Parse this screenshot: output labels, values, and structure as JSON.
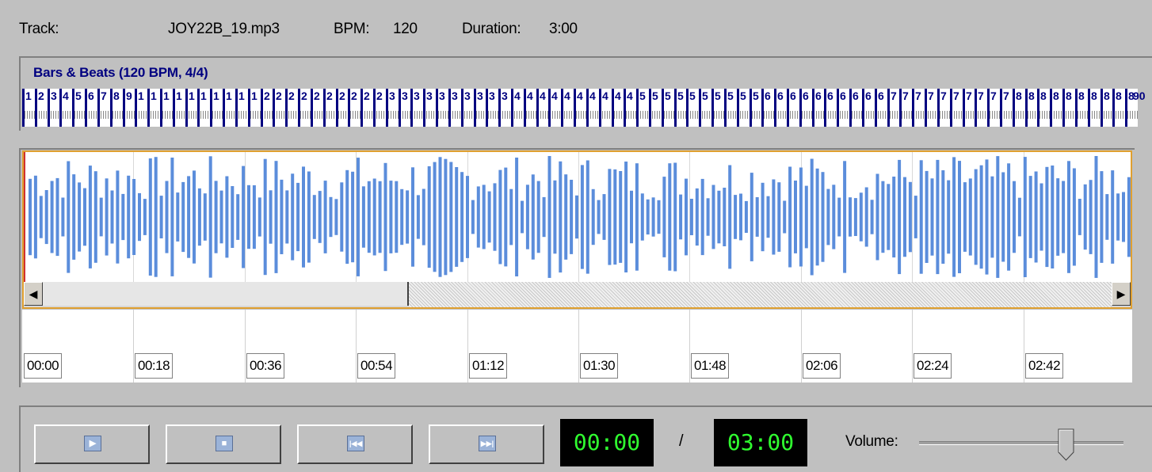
{
  "info": {
    "track_label": "Track:",
    "track_value": "JOY22B_19.mp3",
    "bpm_label": "BPM:",
    "bpm_value": "120",
    "duration_label": "Duration:",
    "duration_value": "3:00"
  },
  "beats": {
    "title": "Bars & Beats (120 BPM, 4/4)",
    "last_bar": "90"
  },
  "timeline": {
    "labels": [
      "00:00",
      "00:18",
      "00:36",
      "00:54",
      "01:12",
      "01:30",
      "01:48",
      "02:06",
      "02:24",
      "02:42"
    ]
  },
  "transport": {
    "play_icon": "play-icon",
    "stop_icon": "stop-icon",
    "rewind_icon": "skip-back-icon",
    "forward_icon": "skip-forward-icon",
    "current_time": "00:00",
    "separator": "/",
    "total_time": "03:00",
    "volume_label": "Volume:",
    "volume_level": 0.72
  },
  "colors": {
    "waveform": "#5b8ddb",
    "beat_marker": "#000080",
    "lcd_text": "#30ff30",
    "selection_border": "#e0a030",
    "playhead": "#d03030"
  }
}
